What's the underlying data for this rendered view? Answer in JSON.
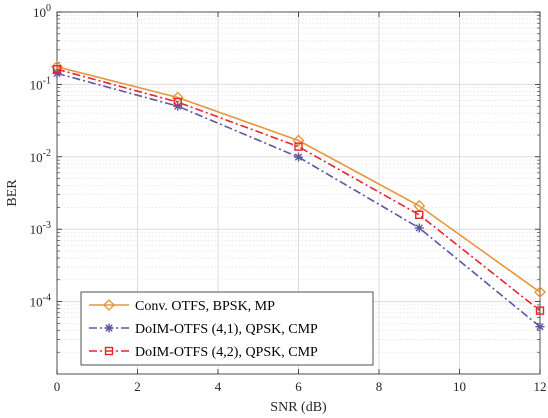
{
  "chart_data": {
    "type": "line",
    "xlabel": "SNR (dB)",
    "ylabel": "BER",
    "x": [
      0,
      3,
      6,
      9,
      12
    ],
    "xlim": [
      0,
      12
    ],
    "ylim": [
      1e-05,
      1
    ],
    "yscale": "log",
    "grid": true,
    "minor_grid": true,
    "legend_position": "bottom-left",
    "x_ticks": [
      "0",
      "2",
      "4",
      "6",
      "8",
      "10",
      "12"
    ],
    "x_tick_values": [
      0,
      2,
      4,
      6,
      8,
      10,
      12
    ],
    "y_ticks": [
      {
        "base": "10",
        "exp": "0",
        "value": 1
      },
      {
        "base": "10",
        "exp": "-1",
        "value": 0.1
      },
      {
        "base": "10",
        "exp": "-2",
        "value": 0.01
      },
      {
        "base": "10",
        "exp": "-3",
        "value": 0.001
      },
      {
        "base": "10",
        "exp": "-4",
        "value": 0.0001
      }
    ],
    "series": [
      {
        "name": "Conv. OTFS, BPSK, MP",
        "values": [
          0.175,
          0.066,
          0.0168,
          0.0021,
          0.000135
        ],
        "color": "#e6963c",
        "dash": "solid",
        "marker": "diamond"
      },
      {
        "name": "DoIM-OTFS (4,1), QPSK, CMP",
        "values": [
          0.142,
          0.05,
          0.0099,
          0.00104,
          4.5e-05
        ],
        "color": "#5e55a0",
        "dash": "dashdot",
        "marker": "asterisk"
      },
      {
        "name": "DoIM-OTFS (4,2), QPSK, CMP",
        "values": [
          0.162,
          0.057,
          0.0138,
          0.00158,
          7.5e-05
        ],
        "color": "#e8262a",
        "dash": "dashdot",
        "marker": "square"
      }
    ]
  }
}
